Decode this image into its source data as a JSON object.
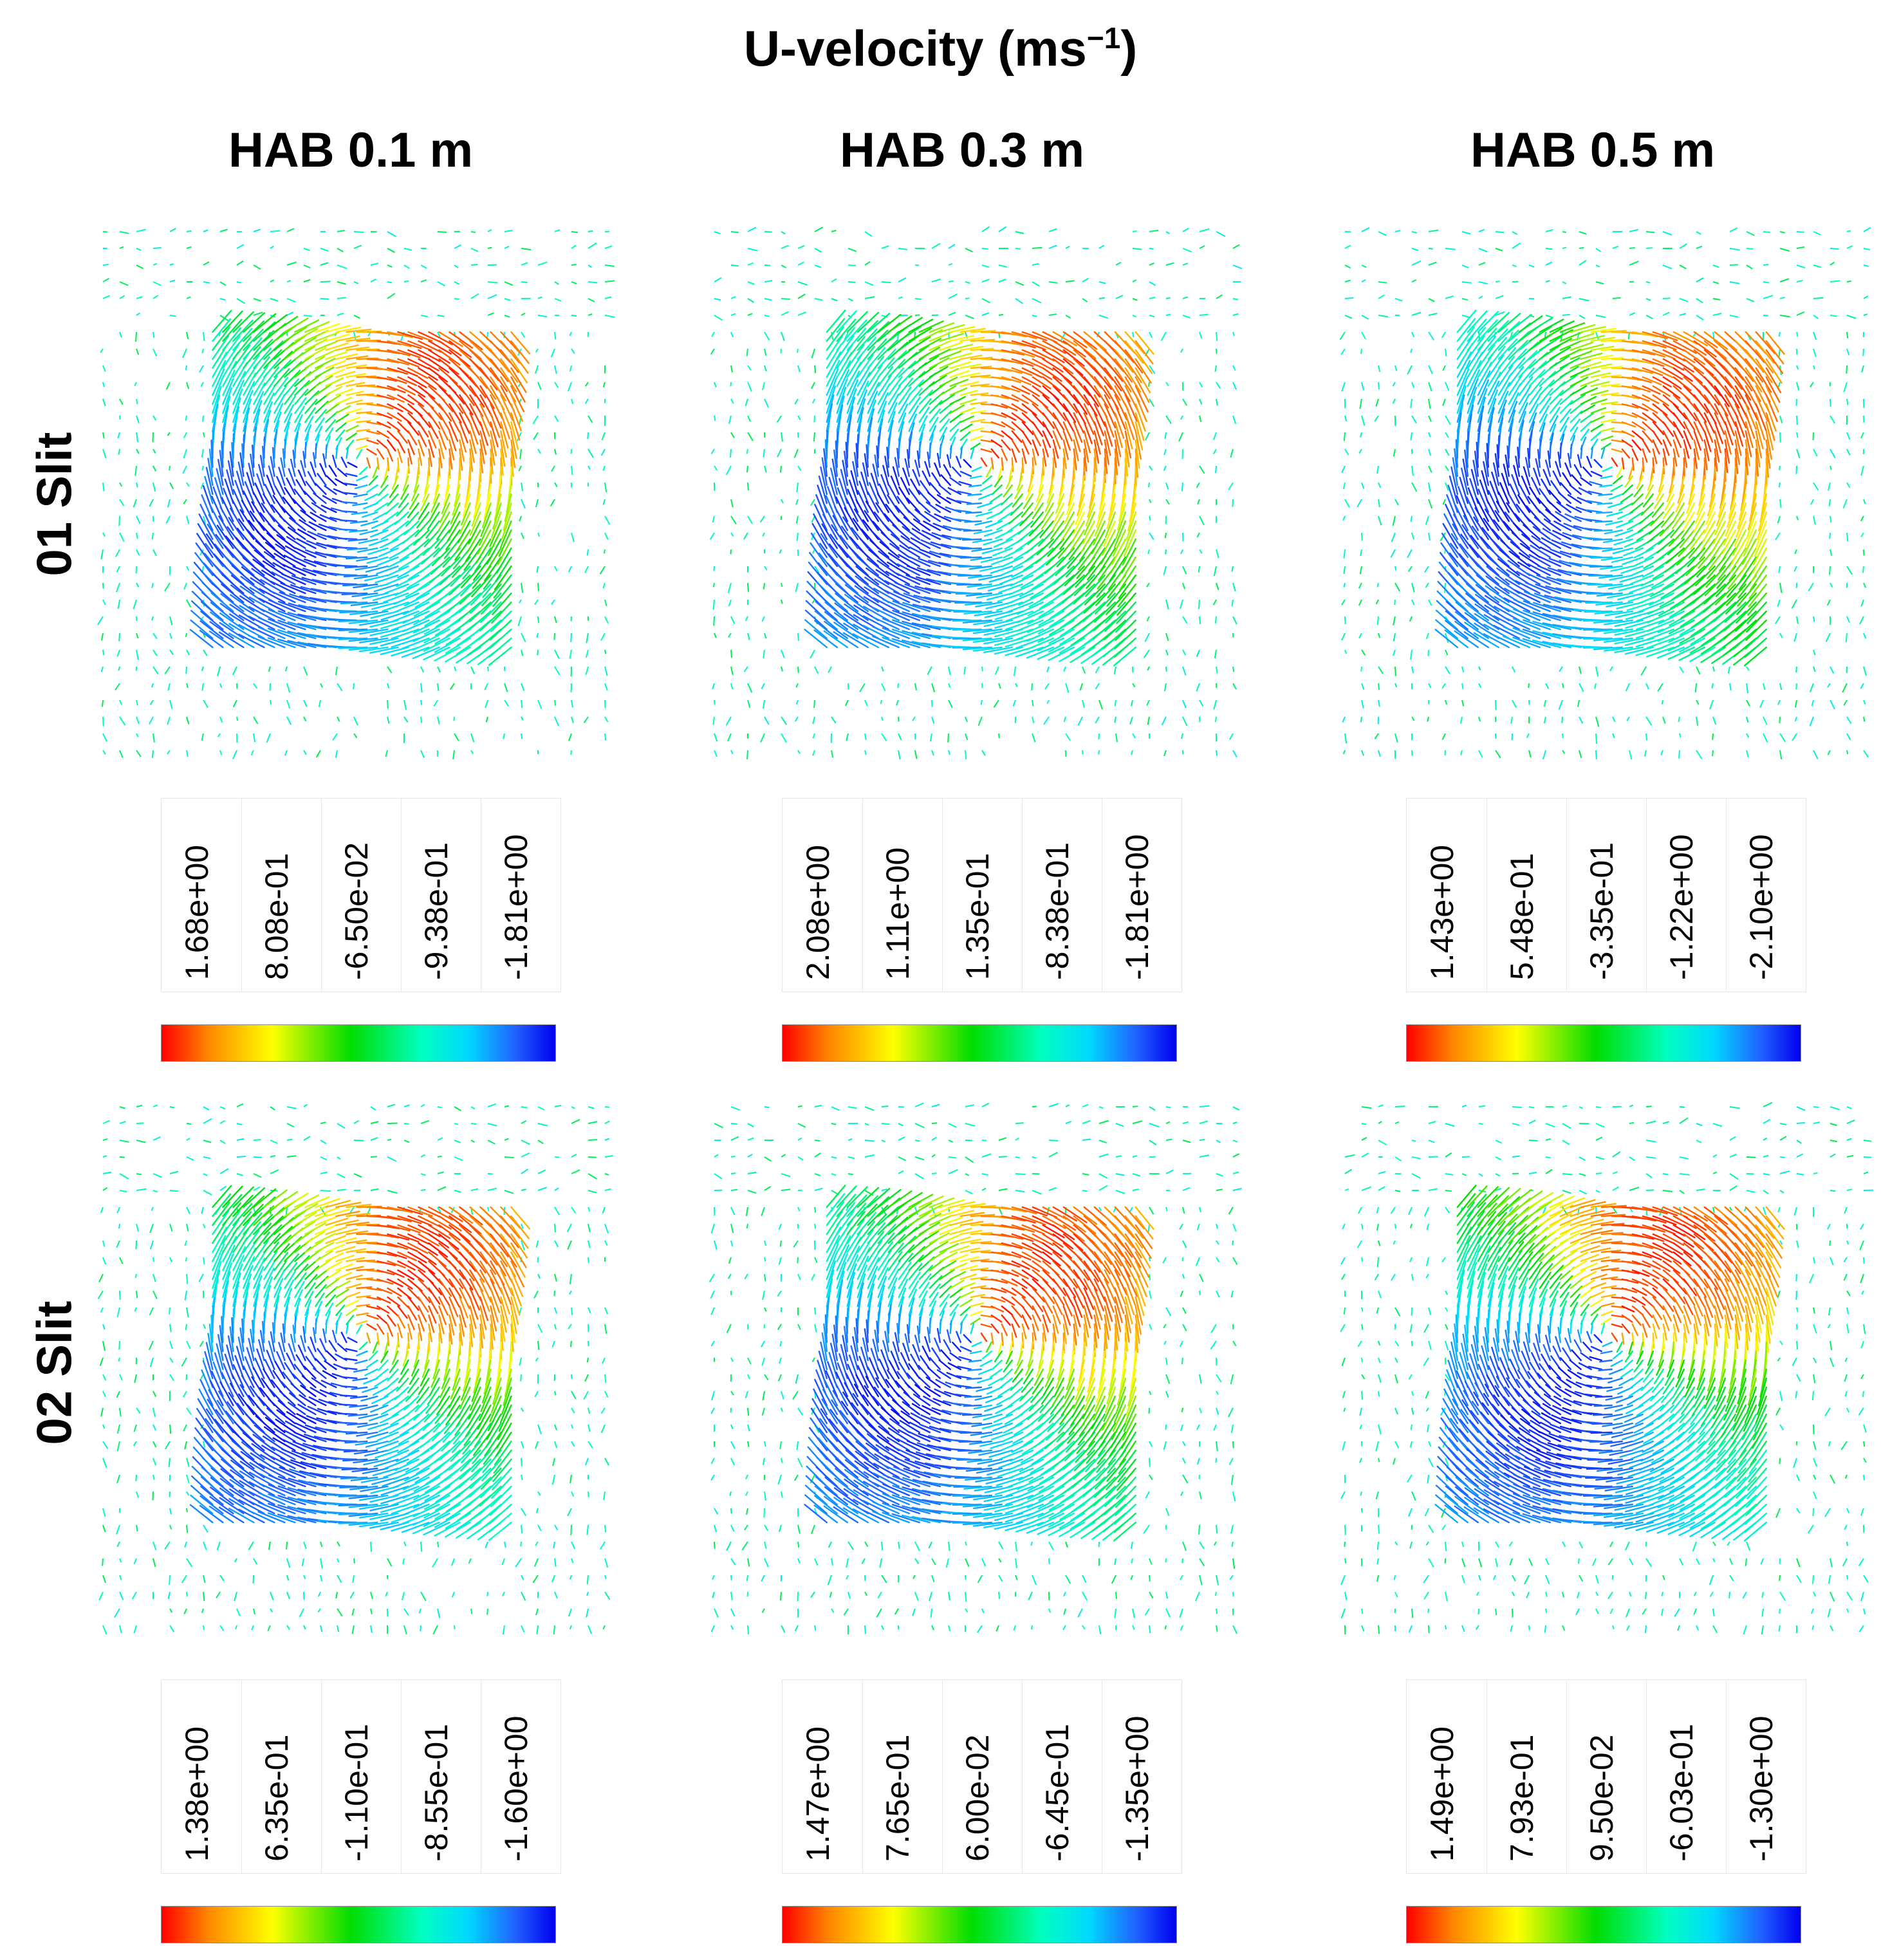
{
  "figure": {
    "title_text": "U-velocity ",
    "title_unit": "(ms",
    "title_exp": "−1",
    "title_close": ")",
    "columns": [
      "HAB 0.1 m",
      "HAB 0.3 m",
      "HAB 0.5 m"
    ],
    "rows": [
      "01 Slit",
      "02 Slit"
    ]
  },
  "legends": [
    {
      "row": 0,
      "col": 0,
      "ticks": [
        "1.68e+00",
        "8.08e-01",
        "-6.50e-02",
        "-9.38e-01",
        "-1.81e+00"
      ]
    },
    {
      "row": 0,
      "col": 1,
      "ticks": [
        "2.08e+00",
        "1.11e+00",
        "1.35e-01",
        "-8.38e-01",
        "-1.81e+00"
      ]
    },
    {
      "row": 0,
      "col": 2,
      "ticks": [
        "1.43e+00",
        "5.48e-01",
        "-3.35e-01",
        "-1.22e+00",
        "-2.10e+00"
      ]
    },
    {
      "row": 1,
      "col": 0,
      "ticks": [
        "1.38e+00",
        "6.35e-01",
        "-1.10e-01",
        "-8.55e-01",
        "-1.60e+00"
      ]
    },
    {
      "row": 1,
      "col": 1,
      "ticks": [
        "1.47e+00",
        "7.65e-01",
        "6.00e-02",
        "-6.45e-01",
        "-1.35e+00"
      ]
    },
    {
      "row": 1,
      "col": 2,
      "ticks": [
        "1.49e+00",
        "7.93e-01",
        "9.50e-02",
        "-6.03e-01",
        "-1.30e+00"
      ]
    }
  ],
  "colormap": [
    "#ff0000",
    "#ff8800",
    "#ffff00",
    "#00dd00",
    "#00ffc0",
    "#00d8ff",
    "#2060ff",
    "#0000ee"
  ]
}
